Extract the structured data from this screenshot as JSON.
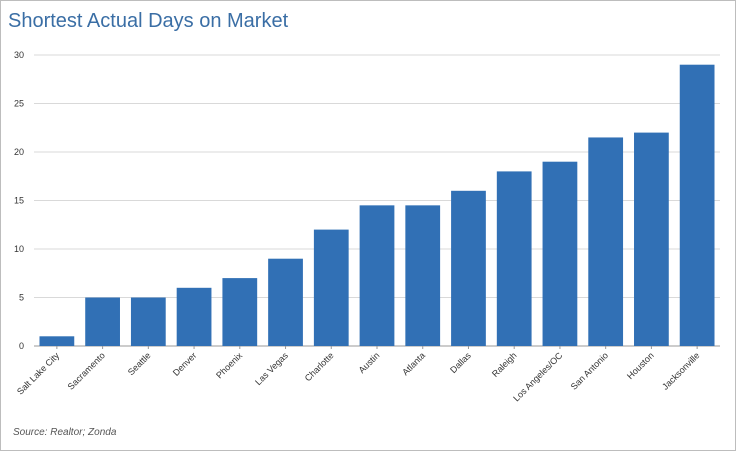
{
  "title": "Shortest Actual Days on Market",
  "source": "Source: Realtor; Zonda",
  "colors": {
    "bar": "#3170b5",
    "grid": "#d9d9d9",
    "axis": "#999999",
    "title": "#3a6ea5"
  },
  "chart_data": {
    "type": "bar",
    "title": "Shortest Actual Days on Market",
    "xlabel": "",
    "ylabel": "",
    "ylim": [
      0,
      30
    ],
    "yticks": [
      0,
      5,
      10,
      15,
      20,
      25,
      30
    ],
    "grid": true,
    "legend": "none",
    "categories": [
      "Salt Lake City",
      "Sacramento",
      "Seattle",
      "Denver",
      "Phoenix",
      "Las Vegas",
      "Charlotte",
      "Austin",
      "Atlanta",
      "Dallas",
      "Raleigh",
      "Los Angeles/OC",
      "San Antonio",
      "Houston",
      "Jacksonville"
    ],
    "values": [
      1,
      5,
      5,
      6,
      7,
      9,
      12,
      14.5,
      14.5,
      16,
      18,
      19,
      21.5,
      22,
      29
    ]
  }
}
